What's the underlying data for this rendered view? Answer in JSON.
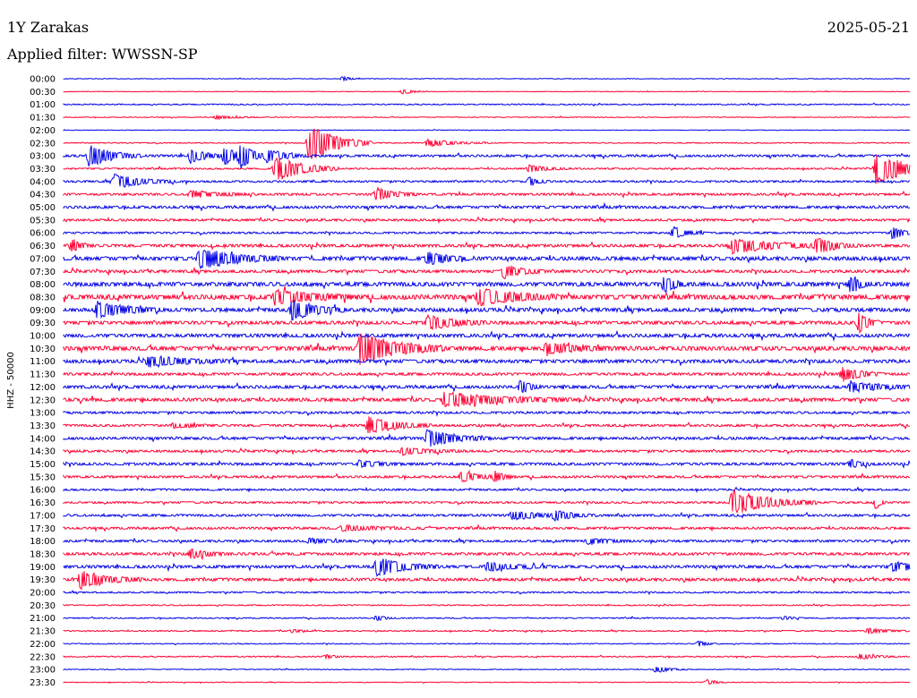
{
  "header": {
    "station": "1Y Zarakas",
    "date": "2025-05-21",
    "filter": "Applied filter: WWSSN-SP"
  },
  "chart_data": {
    "type": "line",
    "title": "1Y Zarakas",
    "ylabel": "HHZ - 50000",
    "colors": [
      "#0000e6",
      "#ff0033"
    ],
    "row_labels": [
      "00:00",
      "00:30",
      "01:00",
      "01:30",
      "02:00",
      "02:30",
      "03:00",
      "03:30",
      "04:00",
      "04:30",
      "05:00",
      "05:30",
      "06:00",
      "06:30",
      "07:00",
      "07:30",
      "08:00",
      "08:30",
      "09:00",
      "09:30",
      "10:00",
      "10:30",
      "11:00",
      "11:30",
      "12:00",
      "12:30",
      "13:00",
      "13:30",
      "14:00",
      "14:30",
      "15:00",
      "15:30",
      "16:00",
      "16:30",
      "17:00",
      "17:30",
      "18:00",
      "18:30",
      "19:00",
      "19:30",
      "20:00",
      "20:30",
      "21:00",
      "21:30",
      "22:00",
      "22:30",
      "23:00",
      "23:30"
    ],
    "row_noise": [
      0.3,
      0.3,
      0.6,
      0.4,
      0.3,
      0.5,
      1.2,
      0.8,
      1.0,
      1.2,
      1.4,
      1.2,
      1.0,
      1.5,
      2.0,
      1.5,
      2.2,
      2.5,
      2.0,
      1.8,
      1.8,
      2.2,
      1.8,
      1.4,
      1.6,
      1.8,
      1.2,
      1.2,
      1.4,
      1.2,
      1.4,
      1.2,
      1.0,
      1.0,
      1.2,
      1.2,
      1.2,
      1.4,
      1.5,
      1.5,
      0.8,
      0.6,
      0.6,
      0.6,
      0.5,
      0.6,
      0.4,
      0.4
    ],
    "events": [
      {
        "row": 0,
        "x": 0.33,
        "amp": 3,
        "w": 0.008
      },
      {
        "row": 1,
        "x": 0.4,
        "amp": 3,
        "w": 0.012
      },
      {
        "row": 3,
        "x": 0.18,
        "amp": 2,
        "w": 0.02
      },
      {
        "row": 5,
        "x": 0.29,
        "amp": 22,
        "w": 0.03
      },
      {
        "row": 5,
        "x": 0.43,
        "amp": 4,
        "w": 0.03
      },
      {
        "row": 6,
        "x": 0.03,
        "amp": 13,
        "w": 0.025
      },
      {
        "row": 6,
        "x": 0.15,
        "amp": 7,
        "w": 0.02
      },
      {
        "row": 6,
        "x": 0.19,
        "amp": 9,
        "w": 0.02
      },
      {
        "row": 6,
        "x": 0.21,
        "amp": 14,
        "w": 0.01
      },
      {
        "row": 6,
        "x": 0.24,
        "amp": 8,
        "w": 0.02
      },
      {
        "row": 7,
        "x": 0.25,
        "amp": 15,
        "w": 0.03
      },
      {
        "row": 7,
        "x": 0.55,
        "amp": 4,
        "w": 0.02
      },
      {
        "row": 7,
        "x": 0.96,
        "amp": 18,
        "w": 0.035
      },
      {
        "row": 8,
        "x": 0.06,
        "amp": 8,
        "w": 0.03
      },
      {
        "row": 8,
        "x": 0.55,
        "amp": 5,
        "w": 0.01
      },
      {
        "row": 9,
        "x": 0.37,
        "amp": 7,
        "w": 0.02
      },
      {
        "row": 9,
        "x": 0.15,
        "amp": 4,
        "w": 0.03
      },
      {
        "row": 12,
        "x": 0.72,
        "amp": 7,
        "w": 0.015
      },
      {
        "row": 12,
        "x": 0.98,
        "amp": 8,
        "w": 0.01
      },
      {
        "row": 13,
        "x": 0.01,
        "amp": 7,
        "w": 0.01
      },
      {
        "row": 13,
        "x": 0.79,
        "amp": 8,
        "w": 0.05
      },
      {
        "row": 13,
        "x": 0.89,
        "amp": 8,
        "w": 0.02
      },
      {
        "row": 14,
        "x": 0.16,
        "amp": 12,
        "w": 0.04
      },
      {
        "row": 14,
        "x": 0.43,
        "amp": 8,
        "w": 0.02
      },
      {
        "row": 15,
        "x": 0.52,
        "amp": 8,
        "w": 0.02
      },
      {
        "row": 16,
        "x": 0.71,
        "amp": 10,
        "w": 0.01
      },
      {
        "row": 16,
        "x": 0.93,
        "amp": 11,
        "w": 0.01
      },
      {
        "row": 17,
        "x": 0.25,
        "amp": 8,
        "w": 0.04
      },
      {
        "row": 17,
        "x": 0.49,
        "amp": 10,
        "w": 0.04
      },
      {
        "row": 18,
        "x": 0.04,
        "amp": 10,
        "w": 0.03
      },
      {
        "row": 18,
        "x": 0.27,
        "amp": 12,
        "w": 0.025
      },
      {
        "row": 19,
        "x": 0.43,
        "amp": 8,
        "w": 0.03
      },
      {
        "row": 19,
        "x": 0.94,
        "amp": 12,
        "w": 0.01
      },
      {
        "row": 21,
        "x": 0.35,
        "amp": 18,
        "w": 0.04
      },
      {
        "row": 21,
        "x": 0.57,
        "amp": 6,
        "w": 0.03
      },
      {
        "row": 22,
        "x": 0.1,
        "amp": 6,
        "w": 0.04
      },
      {
        "row": 23,
        "x": 0.92,
        "amp": 8,
        "w": 0.02
      },
      {
        "row": 24,
        "x": 0.54,
        "amp": 8,
        "w": 0.01
      },
      {
        "row": 24,
        "x": 0.93,
        "amp": 6,
        "w": 0.03
      },
      {
        "row": 25,
        "x": 0.45,
        "amp": 8,
        "w": 0.06
      },
      {
        "row": 27,
        "x": 0.36,
        "amp": 10,
        "w": 0.03
      },
      {
        "row": 27,
        "x": 0.13,
        "amp": 3,
        "w": 0.02
      },
      {
        "row": 28,
        "x": 0.43,
        "amp": 10,
        "w": 0.03
      },
      {
        "row": 29,
        "x": 0.4,
        "amp": 4,
        "w": 0.03
      },
      {
        "row": 30,
        "x": 0.35,
        "amp": 4,
        "w": 0.02
      },
      {
        "row": 30,
        "x": 0.93,
        "amp": 5,
        "w": 0.01
      },
      {
        "row": 31,
        "x": 0.47,
        "amp": 6,
        "w": 0.02
      },
      {
        "row": 31,
        "x": 0.51,
        "amp": 6,
        "w": 0.01
      },
      {
        "row": 33,
        "x": 0.79,
        "amp": 15,
        "w": 0.04
      },
      {
        "row": 33,
        "x": 0.96,
        "amp": 8,
        "w": 0.005
      },
      {
        "row": 34,
        "x": 0.53,
        "amp": 5,
        "w": 0.03
      },
      {
        "row": 34,
        "x": 0.58,
        "amp": 5,
        "w": 0.02
      },
      {
        "row": 35,
        "x": 0.33,
        "amp": 3,
        "w": 0.04
      },
      {
        "row": 36,
        "x": 0.29,
        "amp": 3,
        "w": 0.02
      },
      {
        "row": 36,
        "x": 0.62,
        "amp": 4,
        "w": 0.02
      },
      {
        "row": 37,
        "x": 0.15,
        "amp": 5,
        "w": 0.02
      },
      {
        "row": 38,
        "x": 0.37,
        "amp": 11,
        "w": 0.03
      },
      {
        "row": 38,
        "x": 0.5,
        "amp": 5,
        "w": 0.03
      },
      {
        "row": 38,
        "x": 0.98,
        "amp": 5,
        "w": 0.03
      },
      {
        "row": 39,
        "x": 0.02,
        "amp": 10,
        "w": 0.03
      },
      {
        "row": 42,
        "x": 0.37,
        "amp": 3,
        "w": 0.01
      },
      {
        "row": 42,
        "x": 0.85,
        "amp": 2,
        "w": 0.01
      },
      {
        "row": 43,
        "x": 0.27,
        "amp": 2,
        "w": 0.01
      },
      {
        "row": 43,
        "x": 0.95,
        "amp": 3,
        "w": 0.02
      },
      {
        "row": 44,
        "x": 0.75,
        "amp": 3,
        "w": 0.01
      },
      {
        "row": 45,
        "x": 0.31,
        "amp": 2,
        "w": 0.01
      },
      {
        "row": 45,
        "x": 0.94,
        "amp": 3,
        "w": 0.02
      },
      {
        "row": 46,
        "x": 0.7,
        "amp": 4,
        "w": 0.015
      },
      {
        "row": 47,
        "x": 0.76,
        "amp": 3,
        "w": 0.01
      }
    ]
  }
}
